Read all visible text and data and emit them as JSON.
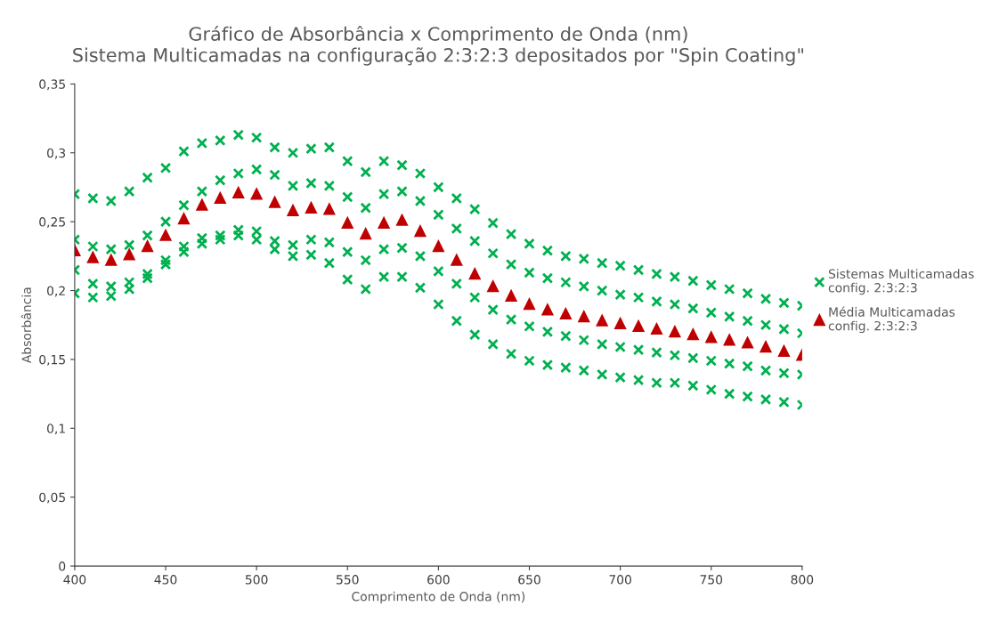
{
  "chart_data": {
    "type": "scatter",
    "title": "Gráfico de Absorbância x Comprimento de Onda (nm)\nSistema Multicamadas na configuração 2:3:2:3 depositados por \"Spin Coating\"",
    "xlabel": "Comprimento de Onda (nm)",
    "ylabel": "Absorbância",
    "x": [
      400,
      410,
      420,
      430,
      440,
      450,
      460,
      470,
      480,
      490,
      500,
      510,
      520,
      530,
      540,
      550,
      560,
      570,
      580,
      590,
      600,
      610,
      620,
      630,
      640,
      650,
      660,
      670,
      680,
      690,
      700,
      710,
      720,
      730,
      740,
      750,
      760,
      770,
      780,
      790,
      800
    ],
    "series": [
      {
        "name": "Sistemas Multicamadas\nconfig. 2:3:2:3",
        "color": "#00b050",
        "marker": "cross",
        "values": [
          0.27,
          0.267,
          0.265,
          0.272,
          0.282,
          0.289,
          0.301,
          0.307,
          0.309,
          0.313,
          0.311,
          0.304,
          0.3,
          0.303,
          0.304,
          0.294,
          0.286,
          0.294,
          0.291,
          0.285,
          0.275,
          0.267,
          0.259,
          0.249,
          0.241,
          0.234,
          0.229,
          0.225,
          0.223,
          0.22,
          0.218,
          0.215,
          0.212,
          0.21,
          0.207,
          0.204,
          0.201,
          0.198,
          0.194,
          0.191,
          0.189
        ]
      },
      {
        "color": "#00b050",
        "marker": "cross",
        "values": [
          0.237,
          0.232,
          0.23,
          0.233,
          0.24,
          0.25,
          0.262,
          0.272,
          0.28,
          0.285,
          0.288,
          0.284,
          0.276,
          0.278,
          0.276,
          0.268,
          0.26,
          0.27,
          0.272,
          0.265,
          0.255,
          0.245,
          0.236,
          0.227,
          0.219,
          0.213,
          0.209,
          0.206,
          0.203,
          0.2,
          0.197,
          0.195,
          0.192,
          0.19,
          0.187,
          0.184,
          0.181,
          0.178,
          0.175,
          0.172,
          0.169
        ]
      },
      {
        "color": "#00b050",
        "marker": "cross",
        "values": [
          0.215,
          0.205,
          0.203,
          0.206,
          0.212,
          0.222,
          0.232,
          0.238,
          0.24,
          0.244,
          0.243,
          0.236,
          0.233,
          0.237,
          0.235,
          0.228,
          0.222,
          0.23,
          0.231,
          0.225,
          0.214,
          0.205,
          0.195,
          0.186,
          0.179,
          0.174,
          0.17,
          0.167,
          0.164,
          0.161,
          0.159,
          0.157,
          0.155,
          0.153,
          0.151,
          0.149,
          0.147,
          0.145,
          0.142,
          0.14,
          0.139
        ]
      },
      {
        "color": "#00b050",
        "marker": "cross",
        "values": [
          0.198,
          0.195,
          0.196,
          0.201,
          0.209,
          0.219,
          0.228,
          0.234,
          0.237,
          0.24,
          0.237,
          0.23,
          0.225,
          0.226,
          0.22,
          0.208,
          0.201,
          0.21,
          0.21,
          0.202,
          0.19,
          0.178,
          0.168,
          0.161,
          0.154,
          0.149,
          0.146,
          0.144,
          0.142,
          0.139,
          0.137,
          0.135,
          0.133,
          0.133,
          0.131,
          0.128,
          0.125,
          0.123,
          0.121,
          0.119,
          0.117
        ]
      },
      {
        "name": "Média Multicamadas\nconfig. 2:3:2:3",
        "color": "#c00000",
        "marker": "triangle",
        "values": [
          0.229,
          0.224,
          0.222,
          0.226,
          0.232,
          0.24,
          0.252,
          0.262,
          0.267,
          0.271,
          0.27,
          0.264,
          0.258,
          0.26,
          0.259,
          0.249,
          0.241,
          0.249,
          0.251,
          0.243,
          0.232,
          0.222,
          0.212,
          0.203,
          0.196,
          0.19,
          0.186,
          0.183,
          0.181,
          0.178,
          0.176,
          0.174,
          0.172,
          0.17,
          0.168,
          0.166,
          0.164,
          0.162,
          0.159,
          0.156,
          0.153
        ]
      }
    ],
    "xlim": [
      400,
      800
    ],
    "xticks": [
      400,
      450,
      500,
      550,
      600,
      650,
      700,
      750,
      800
    ],
    "ylim": [
      0,
      0.35
    ],
    "yticks": [
      0,
      {
        "value": 0.05,
        "label": "0,05"
      },
      {
        "value": 0.1,
        "label": "0,1"
      },
      {
        "value": 0.15,
        "label": "0,15"
      },
      {
        "value": 0.2,
        "label": "0,2"
      },
      {
        "value": 0.25,
        "label": "0,25"
      },
      {
        "value": 0.3,
        "label": "0,3"
      },
      {
        "value": 0.35,
        "label": "0,35"
      }
    ],
    "grid": false,
    "legend": "right"
  }
}
